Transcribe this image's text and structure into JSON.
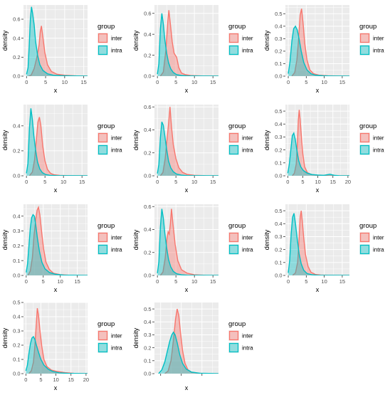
{
  "colors": {
    "inter": "#f8766d",
    "intra": "#00bfc4",
    "panel_bg": "#ebebeb"
  },
  "chart_data": [
    {
      "type": "area",
      "xlabel": "x",
      "ylabel": "density",
      "xlim": [
        -0.8,
        16
      ],
      "ylim": [
        0,
        0.75
      ],
      "xticks": [
        0,
        5,
        10,
        15
      ],
      "yticks": [
        0.0,
        0.2,
        0.4,
        0.6
      ],
      "ytick_format": 1,
      "legend": {
        "title": "group",
        "position": "right"
      },
      "series": [
        {
          "name": "inter",
          "x": [
            0.5,
            1.2,
            2,
            2.6,
            3.0,
            3.3,
            3.6,
            3.9,
            4.3,
            4.8,
            5.5,
            6.5,
            8,
            10,
            13,
            16
          ],
          "y": [
            0,
            0.01,
            0.08,
            0.18,
            0.26,
            0.33,
            0.47,
            0.53,
            0.41,
            0.25,
            0.12,
            0.05,
            0.02,
            0.01,
            0.003,
            0
          ]
        },
        {
          "name": "intra",
          "x": [
            0,
            0.4,
            0.7,
            1.0,
            1.3,
            1.6,
            2.0,
            2.4,
            2.9,
            3.5,
            4.3,
            5.5,
            7,
            9,
            12,
            16
          ],
          "y": [
            0.02,
            0.09,
            0.32,
            0.6,
            0.73,
            0.66,
            0.54,
            0.36,
            0.22,
            0.12,
            0.06,
            0.025,
            0.01,
            0.005,
            0.002,
            0
          ]
        }
      ]
    },
    {
      "type": "area",
      "xlabel": "x",
      "ylabel": "density",
      "xlim": [
        -0.8,
        16.5
      ],
      "ylim": [
        0,
        0.68
      ],
      "xticks": [
        0,
        5,
        10,
        15
      ],
      "yticks": [
        0.0,
        0.2,
        0.4,
        0.6
      ],
      "ytick_format": 1,
      "legend": {
        "title": "group",
        "position": "right"
      },
      "series": [
        {
          "name": "inter",
          "x": [
            0.8,
            1.6,
            2.3,
            2.8,
            3.1,
            3.5,
            4.0,
            4.5,
            5.2,
            5.8,
            6.5,
            7.5,
            9,
            12,
            16.5
          ],
          "y": [
            0,
            0.04,
            0.25,
            0.52,
            0.63,
            0.5,
            0.33,
            0.22,
            0.18,
            0.08,
            0.03,
            0.015,
            0.006,
            0.002,
            0
          ]
        },
        {
          "name": "intra",
          "x": [
            0,
            0.4,
            0.8,
            1.2,
            1.6,
            2.0,
            2.5,
            3.0,
            3.6,
            4.3,
            5.2,
            6.5,
            8,
            11,
            16.5
          ],
          "y": [
            0.02,
            0.12,
            0.45,
            0.6,
            0.5,
            0.35,
            0.22,
            0.13,
            0.07,
            0.035,
            0.015,
            0.006,
            0.003,
            0.001,
            0
          ]
        }
      ]
    },
    {
      "type": "area",
      "xlabel": "x",
      "ylabel": "density",
      "xlim": [
        -0.8,
        17
      ],
      "ylim": [
        0,
        0.57
      ],
      "xticks": [
        0,
        5,
        10,
        15
      ],
      "yticks": [
        0.0,
        0.1,
        0.2,
        0.3,
        0.4,
        0.5
      ],
      "ytick_format": 1,
      "legend": {
        "title": "group",
        "position": "right"
      },
      "series": [
        {
          "name": "inter",
          "x": [
            1,
            1.8,
            2.4,
            2.9,
            3.3,
            3.7,
            4.1,
            4.6,
            5.2,
            6,
            7,
            8.5,
            11,
            14,
            17
          ],
          "y": [
            0,
            0.03,
            0.13,
            0.31,
            0.49,
            0.54,
            0.43,
            0.26,
            0.13,
            0.05,
            0.02,
            0.008,
            0.003,
            0.001,
            0
          ]
        },
        {
          "name": "intra",
          "x": [
            0,
            0.5,
            1.0,
            1.5,
            2.0,
            2.5,
            3.0,
            3.6,
            4.3,
            5.2,
            6.3,
            7.5,
            9.5,
            12,
            17
          ],
          "y": [
            0.02,
            0.12,
            0.28,
            0.38,
            0.4,
            0.37,
            0.3,
            0.2,
            0.11,
            0.05,
            0.02,
            0.008,
            0.003,
            0.001,
            0
          ]
        }
      ]
    },
    {
      "type": "area",
      "xlabel": "x",
      "ylabel": "density",
      "xlim": [
        -0.8,
        16.5
      ],
      "ylim": [
        0,
        0.57
      ],
      "xticks": [
        0,
        5,
        10,
        15
      ],
      "yticks": [
        0.0,
        0.2,
        0.4
      ],
      "ytick_format": 1,
      "legend": {
        "title": "group",
        "position": "right"
      },
      "series": [
        {
          "name": "inter",
          "x": [
            0.8,
            1.6,
            2.2,
            2.7,
            3.1,
            3.5,
            3.9,
            4.4,
            5.0,
            5.7,
            6.5,
            7.5,
            9,
            12,
            16.5
          ],
          "y": [
            0,
            0.03,
            0.13,
            0.3,
            0.43,
            0.47,
            0.4,
            0.24,
            0.12,
            0.05,
            0.02,
            0.008,
            0.003,
            0.001,
            0
          ]
        },
        {
          "name": "intra",
          "x": [
            0,
            0.4,
            0.8,
            1.2,
            1.6,
            2.0,
            2.5,
            3.0,
            3.6,
            4.3,
            5.2,
            6.3,
            8,
            11,
            16.5
          ],
          "y": [
            0.02,
            0.1,
            0.38,
            0.54,
            0.45,
            0.32,
            0.2,
            0.11,
            0.055,
            0.025,
            0.01,
            0.004,
            0.002,
            0.001,
            0
          ]
        }
      ]
    },
    {
      "type": "area",
      "xlabel": "x",
      "ylabel": "density",
      "xlim": [
        -0.8,
        16.5
      ],
      "ylim": [
        0,
        0.62
      ],
      "xticks": [
        0,
        5,
        10,
        15
      ],
      "yticks": [
        0.0,
        0.2,
        0.4,
        0.6
      ],
      "ytick_format": 1,
      "legend": {
        "title": "group",
        "position": "right"
      },
      "series": [
        {
          "name": "inter",
          "x": [
            0.8,
            1.5,
            2.1,
            2.6,
            3.0,
            3.4,
            3.8,
            4.3,
            5.0,
            5.8,
            6.8,
            8,
            10,
            13,
            16.5
          ],
          "y": [
            0,
            0.03,
            0.15,
            0.32,
            0.45,
            0.6,
            0.43,
            0.27,
            0.15,
            0.07,
            0.03,
            0.012,
            0.004,
            0.001,
            0
          ]
        },
        {
          "name": "intra",
          "x": [
            0,
            0.4,
            0.8,
            1.2,
            1.6,
            2.0,
            2.5,
            3.0,
            3.6,
            4.3,
            5.2,
            6.5,
            8,
            11,
            16.5
          ],
          "y": [
            0.02,
            0.1,
            0.33,
            0.47,
            0.44,
            0.35,
            0.23,
            0.13,
            0.07,
            0.035,
            0.015,
            0.006,
            0.002,
            0.001,
            0
          ]
        }
      ]
    },
    {
      "type": "area",
      "xlabel": "x",
      "ylabel": "density",
      "xlim": [
        -0.8,
        20.5
      ],
      "ylim": [
        0,
        0.55
      ],
      "xticks": [
        0,
        5,
        10,
        15,
        20
      ],
      "yticks": [
        0.0,
        0.1,
        0.2,
        0.3,
        0.4,
        0.5
      ],
      "ytick_format": 1,
      "legend": {
        "title": "group",
        "position": "right"
      },
      "series": [
        {
          "name": "inter",
          "x": [
            1.5,
            2.2,
            2.8,
            3.2,
            3.5,
            3.8,
            4.1,
            4.5,
            5.0,
            5.6,
            6.5,
            8,
            10,
            14,
            20.5
          ],
          "y": [
            0,
            0.02,
            0.09,
            0.25,
            0.43,
            0.51,
            0.44,
            0.31,
            0.17,
            0.07,
            0.025,
            0.008,
            0.003,
            0.001,
            0
          ]
        },
        {
          "name": "intra",
          "x": [
            0,
            0.5,
            1.0,
            1.5,
            2.0,
            2.5,
            3.0,
            3.6,
            4.3,
            5.2,
            6.5,
            8,
            10,
            12,
            14,
            15.5,
            17,
            20.5
          ],
          "y": [
            0.02,
            0.09,
            0.2,
            0.31,
            0.33,
            0.28,
            0.2,
            0.12,
            0.07,
            0.04,
            0.02,
            0.01,
            0.006,
            0.004,
            0.012,
            0.004,
            0.001,
            0
          ]
        }
      ]
    },
    {
      "type": "area",
      "xlabel": "x",
      "ylabel": "density",
      "xlim": [
        -0.8,
        18
      ],
      "ylim": [
        0,
        0.48
      ],
      "xticks": [
        0,
        5,
        10,
        15
      ],
      "yticks": [
        0.0,
        0.1,
        0.2,
        0.3,
        0.4
      ],
      "ytick_format": 1,
      "legend": {
        "title": "group",
        "position": "right"
      },
      "series": [
        {
          "name": "inter",
          "x": [
            0.5,
            1.2,
            1.8,
            2.3,
            2.8,
            3.2,
            3.6,
            4.0,
            4.5,
            5.1,
            5.8,
            6.8,
            8,
            10,
            13,
            18
          ],
          "y": [
            0,
            0.03,
            0.12,
            0.27,
            0.38,
            0.44,
            0.46,
            0.41,
            0.3,
            0.18,
            0.09,
            0.04,
            0.015,
            0.005,
            0.001,
            0
          ]
        },
        {
          "name": "intra",
          "x": [
            0,
            0.4,
            0.8,
            1.2,
            1.6,
            2.0,
            2.4,
            2.8,
            3.3,
            3.9,
            4.6,
            5.5,
            6.8,
            8.5,
            11,
            18
          ],
          "y": [
            0.02,
            0.08,
            0.2,
            0.32,
            0.39,
            0.41,
            0.4,
            0.34,
            0.25,
            0.16,
            0.09,
            0.045,
            0.02,
            0.008,
            0.002,
            0
          ]
        }
      ]
    },
    {
      "type": "area",
      "xlabel": "x",
      "ylabel": "density",
      "xlim": [
        -0.8,
        16.5
      ],
      "ylim": [
        0,
        0.62
      ],
      "xticks": [
        0,
        5,
        10,
        15
      ],
      "yticks": [
        0.0,
        0.2,
        0.4,
        0.6
      ],
      "ytick_format": 1,
      "legend": {
        "title": "group",
        "position": "right"
      },
      "series": [
        {
          "name": "inter",
          "x": [
            0.8,
            1.5,
            2.1,
            2.6,
            2.9,
            3.2,
            3.5,
            3.8,
            4.2,
            4.8,
            5.5,
            6.5,
            8,
            10,
            13,
            16.5
          ],
          "y": [
            0,
            0.03,
            0.15,
            0.33,
            0.38,
            0.36,
            0.45,
            0.58,
            0.45,
            0.27,
            0.13,
            0.05,
            0.02,
            0.006,
            0.001,
            0
          ]
        },
        {
          "name": "intra",
          "x": [
            0,
            0.4,
            0.8,
            1.2,
            1.6,
            2.0,
            2.5,
            3.0,
            3.6,
            4.3,
            5.2,
            6.5,
            8,
            11,
            16.5
          ],
          "y": [
            0.02,
            0.12,
            0.42,
            0.58,
            0.5,
            0.37,
            0.24,
            0.14,
            0.075,
            0.035,
            0.015,
            0.006,
            0.002,
            0.001,
            0
          ]
        }
      ]
    },
    {
      "type": "area",
      "xlabel": "x",
      "ylabel": "density",
      "xlim": [
        -0.8,
        17
      ],
      "ylim": [
        0,
        0.55
      ],
      "xticks": [
        0,
        5,
        10,
        15
      ],
      "yticks": [
        0.0,
        0.1,
        0.2,
        0.3,
        0.4,
        0.5
      ],
      "ytick_format": 1,
      "legend": {
        "title": "group",
        "position": "right"
      },
      "series": [
        {
          "name": "inter",
          "x": [
            1.2,
            2.0,
            2.6,
            3.0,
            3.3,
            3.6,
            3.9,
            4.3,
            4.8,
            5.5,
            6.3,
            7.5,
            9,
            12,
            17
          ],
          "y": [
            0,
            0.02,
            0.1,
            0.28,
            0.45,
            0.5,
            0.42,
            0.29,
            0.16,
            0.07,
            0.025,
            0.008,
            0.003,
            0.001,
            0
          ]
        },
        {
          "name": "intra",
          "x": [
            0,
            0.4,
            0.8,
            1.2,
            1.6,
            2.0,
            2.5,
            3.0,
            3.6,
            4.3,
            5.2,
            6.5,
            8,
            11,
            17
          ],
          "y": [
            0.02,
            0.12,
            0.32,
            0.45,
            0.48,
            0.4,
            0.28,
            0.17,
            0.09,
            0.04,
            0.015,
            0.006,
            0.002,
            0.001,
            0
          ]
        }
      ]
    },
    {
      "type": "area",
      "xlabel": "x",
      "ylabel": "density",
      "xlim": [
        -0.8,
        20.5
      ],
      "ylim": [
        0,
        0.5
      ],
      "xticks": [
        0,
        5,
        10,
        15,
        20
      ],
      "yticks": [
        0.0,
        0.1,
        0.2,
        0.3,
        0.4,
        0.5
      ],
      "ytick_format": 1,
      "legend": {
        "title": "group",
        "position": "right"
      },
      "series": [
        {
          "name": "inter",
          "x": [
            1.0,
            1.8,
            2.5,
            3.0,
            3.4,
            3.8,
            4.2,
            4.7,
            5.3,
            6.0,
            7.0,
            8.5,
            10.5,
            13,
            16,
            20.5
          ],
          "y": [
            0,
            0.02,
            0.08,
            0.2,
            0.33,
            0.46,
            0.41,
            0.3,
            0.19,
            0.1,
            0.05,
            0.025,
            0.015,
            0.007,
            0.002,
            0
          ]
        },
        {
          "name": "intra",
          "x": [
            0,
            0.5,
            1.0,
            1.5,
            2.0,
            2.5,
            3.0,
            3.5,
            4.2,
            5.0,
            6.0,
            7.5,
            9,
            11,
            14,
            20.5
          ],
          "y": [
            0.02,
            0.06,
            0.14,
            0.21,
            0.25,
            0.26,
            0.24,
            0.2,
            0.15,
            0.1,
            0.06,
            0.03,
            0.015,
            0.006,
            0.002,
            0
          ]
        }
      ]
    },
    {
      "type": "area",
      "xlabel": "x",
      "ylabel": "density",
      "xlim": [
        -1.5,
        14
      ],
      "ylim": [
        0,
        0.55
      ],
      "xticks": [],
      "xtick_marks": [
        0,
        5,
        10
      ],
      "yticks": [
        0.0,
        0.1,
        0.2,
        0.3,
        0.4,
        0.5
      ],
      "ytick_format": 1,
      "legend": {
        "title": "group",
        "position": "right"
      },
      "series": [
        {
          "name": "inter",
          "x": [
            1.0,
            1.8,
            2.5,
            3.1,
            3.6,
            4.0,
            4.4,
            4.8,
            5.3,
            5.9,
            6.6,
            7.5,
            9,
            11,
            14
          ],
          "y": [
            0,
            0.02,
            0.1,
            0.26,
            0.42,
            0.5,
            0.45,
            0.32,
            0.18,
            0.08,
            0.03,
            0.01,
            0.003,
            0.001,
            0
          ]
        },
        {
          "name": "intra",
          "x": [
            -0.5,
            0.3,
            1.0,
            1.6,
            2.2,
            2.7,
            3.1,
            3.5,
            4.0,
            4.6,
            5.3,
            6.2,
            7.5,
            9.5,
            14
          ],
          "y": [
            0,
            0.03,
            0.09,
            0.17,
            0.25,
            0.3,
            0.32,
            0.3,
            0.24,
            0.15,
            0.08,
            0.035,
            0.012,
            0.003,
            0
          ]
        }
      ]
    }
  ]
}
